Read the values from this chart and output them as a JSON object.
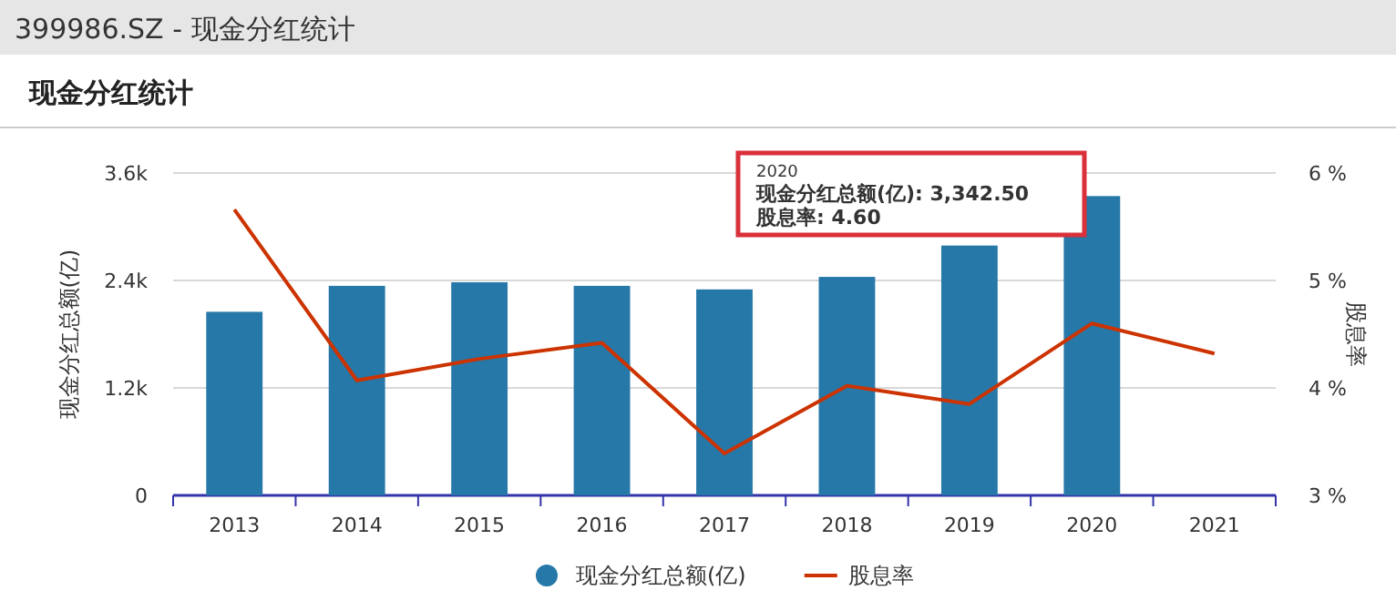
{
  "chart_data": {
    "type": "bar",
    "title": "399986.SZ - 现金分红统计",
    "subtitle": "现金分红统计",
    "ylabel": "现金分红总额(亿)",
    "y2label": "股息率",
    "categories": [
      "2013",
      "2014",
      "2015",
      "2016",
      "2017",
      "2018",
      "2019",
      "2020",
      "2021"
    ],
    "series": [
      {
        "name": "现金分红总额(亿)",
        "color": "#2578a8",
        "values": [
          2050,
          2340,
          2380,
          2340,
          2300,
          2440,
          2790,
          3342.5,
          null
        ]
      },
      {
        "name": "股息率",
        "type": "line",
        "axis": "y2",
        "color": "#cc3300",
        "values": [
          5.66,
          4.07,
          4.27,
          4.42,
          3.39,
          4.02,
          3.85,
          4.6,
          4.32
        ]
      }
    ],
    "ylim": [
      0,
      3600
    ],
    "yticks": [
      {
        "value": 0,
        "label": "0"
      },
      {
        "value": 1200,
        "label": "1.2k"
      },
      {
        "value": 2400,
        "label": "2.4k"
      },
      {
        "value": 3600,
        "label": "3.6k"
      }
    ],
    "y2lim": [
      3,
      6
    ],
    "y2ticks": [
      {
        "value": 3,
        "label": "3 %"
      },
      {
        "value": 4,
        "label": "4 %"
      },
      {
        "value": 5,
        "label": "5 %"
      },
      {
        "value": 6,
        "label": "6 %"
      }
    ],
    "grid": "y",
    "legend": "bottom",
    "annotations": [
      "2020",
      "现金分红总额(亿): 3,342.50",
      "股息率: 4.60"
    ]
  }
}
